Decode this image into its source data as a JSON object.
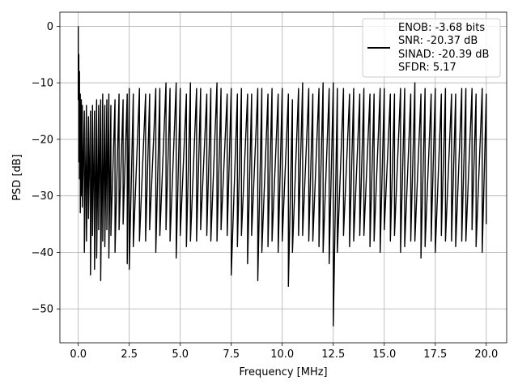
{
  "chart_data": {
    "type": "line",
    "title": "",
    "xlabel": "Frequency [MHz]",
    "ylabel": "PSD [dB]",
    "xlim": [
      -0.9,
      21.0
    ],
    "ylim": [
      -56,
      2.5
    ],
    "xticks": [
      0.0,
      2.5,
      5.0,
      7.5,
      10.0,
      12.5,
      15.0,
      17.5,
      20.0
    ],
    "xtick_labels": [
      "0.0",
      "2.5",
      "5.0",
      "7.5",
      "10.0",
      "12.5",
      "15.0",
      "17.5",
      "20.0"
    ],
    "yticks": [
      0,
      -10,
      -20,
      -30,
      -40,
      -50
    ],
    "ytick_labels": [
      "0",
      "−10",
      "−20",
      "−30",
      "−40",
      "−50"
    ],
    "grid": true,
    "legend_position": "top-right",
    "line_color": "#000000",
    "legend": [
      "ENOB: -3.68 bits",
      "SNR: -20.37 dB",
      "SINAD: -20.39 dB",
      "SFDR: 5.17"
    ],
    "series": [
      {
        "x": [
          0.0,
          0.03,
          0.06,
          0.1,
          0.15,
          0.2,
          0.3,
          0.4,
          0.5,
          0.6,
          0.7,
          0.8,
          0.9,
          1.0,
          1.1,
          1.2,
          1.3,
          1.4,
          1.5,
          1.6,
          1.8,
          2.0,
          2.2,
          2.4,
          2.5,
          2.7,
          3.0,
          3.3,
          3.5,
          3.8,
          4.0,
          4.3,
          4.5,
          4.8,
          5.0,
          5.3,
          5.5,
          5.8,
          6.0,
          6.3,
          6.5,
          6.8,
          7.0,
          7.3,
          7.5,
          7.8,
          8.0,
          8.3,
          8.5,
          8.8,
          9.0,
          9.3,
          9.5,
          9.8,
          10.0,
          10.3,
          10.5,
          10.8,
          11.0,
          11.3,
          11.5,
          11.8,
          12.0,
          12.3,
          12.5,
          12.7,
          13.0,
          13.3,
          13.5,
          13.8,
          14.0,
          14.3,
          14.5,
          14.8,
          15.0,
          15.3,
          15.5,
          15.8,
          16.0,
          16.3,
          16.5,
          16.8,
          17.0,
          17.3,
          17.5,
          17.8,
          18.0,
          18.3,
          18.5,
          18.8,
          19.0,
          19.3,
          19.5,
          19.8,
          20.0
        ],
        "y_max": [
          0.0,
          -5,
          -8,
          -12,
          -13,
          -14,
          -15,
          -14,
          -16,
          -15,
          -14,
          -15,
          -13,
          -14,
          -13,
          -12,
          -14,
          -13,
          -12,
          -14,
          -13,
          -12,
          -13,
          -12,
          -11,
          -12,
          -11,
          -12,
          -12,
          -11,
          -11,
          -10,
          -11,
          -10,
          -11,
          -12,
          -10,
          -11,
          -11,
          -12,
          -11,
          -10,
          -11,
          -12,
          -11,
          -12,
          -11,
          -12,
          -12,
          -11,
          -11,
          -12,
          -11,
          -12,
          -11,
          -12,
          -13,
          -11,
          -10,
          -11,
          -12,
          -11,
          -10,
          -11,
          -10,
          -11,
          -11,
          -12,
          -11,
          -12,
          -11,
          -12,
          -12,
          -11,
          -11,
          -12,
          -12,
          -11,
          -11,
          -12,
          -10,
          -12,
          -11,
          -12,
          -11,
          -12,
          -11,
          -12,
          -12,
          -11,
          -11,
          -11,
          -12,
          -11,
          -12
        ],
        "y_min": [
          -13,
          -24,
          -27,
          -33,
          -30,
          -32,
          -40,
          -38,
          -34,
          -44,
          -37,
          -43,
          -41,
          -36,
          -45,
          -38,
          -39,
          -36,
          -41,
          -37,
          -40,
          -36,
          -35,
          -42,
          -43,
          -39,
          -38,
          -38,
          -36,
          -40,
          -37,
          -36,
          -38,
          -41,
          -37,
          -39,
          -38,
          -38,
          -36,
          -37,
          -38,
          -38,
          -36,
          -37,
          -44,
          -39,
          -37,
          -42,
          -37,
          -45,
          -40,
          -39,
          -38,
          -40,
          -38,
          -46,
          -40,
          -37,
          -37,
          -38,
          -38,
          -39,
          -40,
          -42,
          -53,
          -40,
          -37,
          -39,
          -38,
          -37,
          -37,
          -39,
          -38,
          -40,
          -36,
          -38,
          -37,
          -40,
          -39,
          -38,
          -38,
          -41,
          -39,
          -38,
          -40,
          -37,
          -38,
          -38,
          -39,
          -38,
          -38,
          -36,
          -39,
          -40,
          -35
        ]
      }
    ]
  }
}
